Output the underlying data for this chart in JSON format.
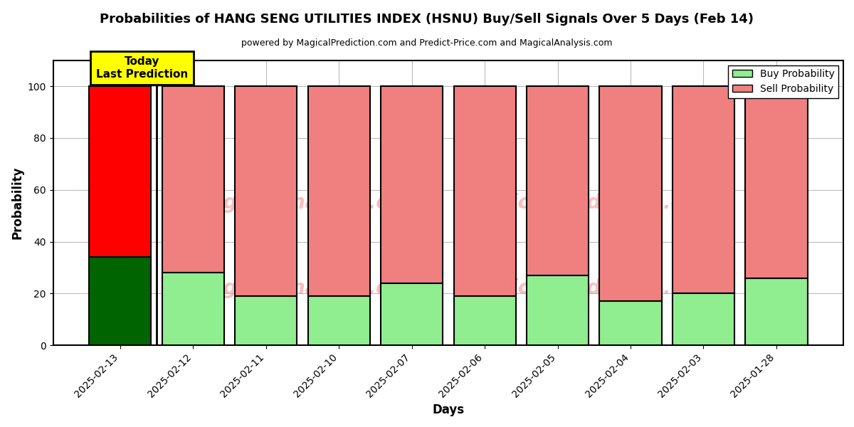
{
  "title": "Probabilities of HANG SENG UTILITIES INDEX (HSNU) Buy/Sell Signals Over 5 Days (Feb 14)",
  "subtitle": "powered by MagicalPrediction.com and Predict-Price.com and MagicalAnalysis.com",
  "xlabel": "Days",
  "ylabel": "Probability",
  "categories": [
    "2025-02-13",
    "2025-02-12",
    "2025-02-11",
    "2025-02-10",
    "2025-02-07",
    "2025-02-06",
    "2025-02-05",
    "2025-02-04",
    "2025-02-03",
    "2025-01-28"
  ],
  "buy_values": [
    34,
    28,
    19,
    19,
    24,
    19,
    27,
    17,
    20,
    26
  ],
  "sell_values": [
    66,
    72,
    81,
    81,
    76,
    81,
    73,
    83,
    80,
    74
  ],
  "today_buy_color": "#006400",
  "today_sell_color": "#ff0000",
  "buy_color": "#90ee90",
  "sell_color": "#f08080",
  "today_label_bg": "#ffff00",
  "today_label_text": "Today\nLast Prediction",
  "legend_buy": "Buy Probability",
  "legend_sell": "Sell Probability",
  "ylim": [
    0,
    110
  ],
  "yticks": [
    0,
    20,
    40,
    60,
    80,
    100
  ],
  "dashed_line_y": 110,
  "watermark_left": "MagicalAnalysis.com",
  "watermark_right": "MagicalPrediction.com",
  "bg_color": "#ffffff",
  "grid_color": "#bbbbbb",
  "bar_width": 0.85
}
